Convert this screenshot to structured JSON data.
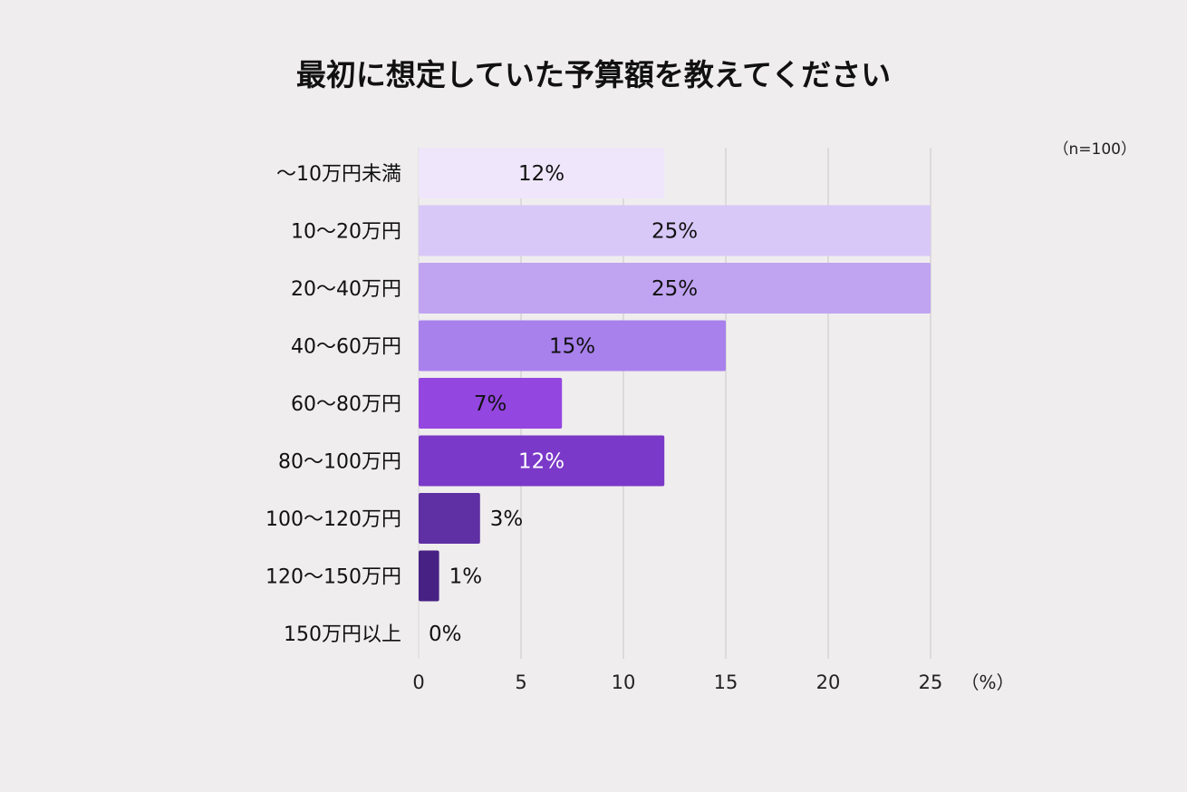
{
  "chart_data": {
    "type": "bar",
    "orientation": "horizontal",
    "title": "最初に想定していた予算額を教えてください",
    "sample_note": "（n=100）",
    "x_unit": "（%）",
    "categories": [
      "〜10万円未満",
      "10〜20万円",
      "20〜40万円",
      "40〜60万円",
      "60〜80万円",
      "80〜100万円",
      "100〜120万円",
      "120〜150万円",
      "150万円以上"
    ],
    "values": [
      12,
      25,
      25,
      15,
      7,
      12,
      3,
      1,
      0
    ],
    "value_labels": [
      "12%",
      "25%",
      "25%",
      "15%",
      "7%",
      "12%",
      "3%",
      "1%",
      "0%"
    ],
    "bar_colors": [
      "#efe6fb",
      "#d8c8f8",
      "#c0a4f2",
      "#a881ec",
      "#9446e0",
      "#7a39c8",
      "#5f2fa4",
      "#472183",
      "#3a1a6e"
    ],
    "label_colors": [
      "#111111",
      "#111111",
      "#111111",
      "#111111",
      "#111111",
      "#ffffff",
      "#111111",
      "#111111",
      "#111111"
    ],
    "xlim": [
      0,
      25
    ],
    "xticks": [
      0,
      5,
      10,
      15,
      20,
      25
    ],
    "grid": "vertical"
  }
}
